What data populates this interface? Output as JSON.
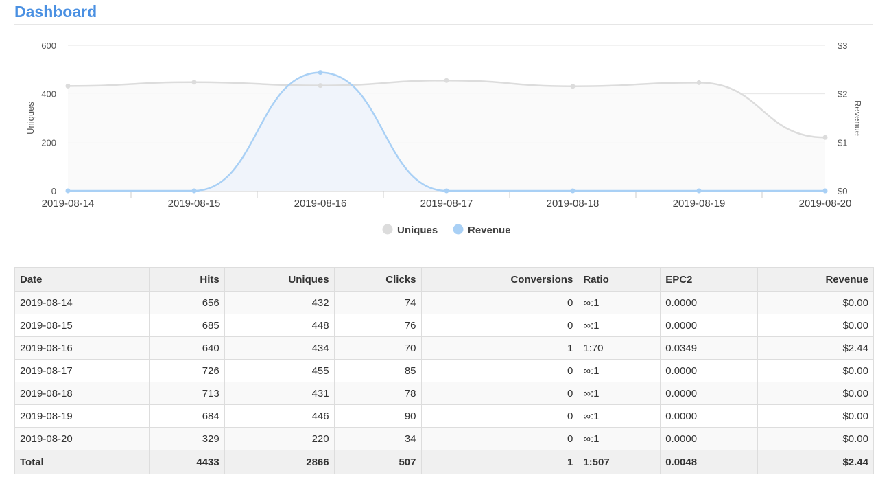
{
  "page": {
    "title": "Dashboard"
  },
  "chart_data": {
    "type": "line",
    "categories": [
      "2019-08-14",
      "2019-08-15",
      "2019-08-16",
      "2019-08-17",
      "2019-08-18",
      "2019-08-19",
      "2019-08-20"
    ],
    "series": [
      {
        "name": "Uniques",
        "axis": "left",
        "values": [
          432,
          448,
          434,
          455,
          431,
          446,
          220
        ],
        "color": "#dcdcdc",
        "fill": "#fafafa"
      },
      {
        "name": "Revenue",
        "axis": "right",
        "values": [
          0,
          0,
          2.44,
          0,
          0,
          0,
          0
        ],
        "color": "#a9d0f5",
        "fill": "#eef3fb"
      }
    ],
    "ylabel_left": "Uniques",
    "ylabel_right": "Revenue",
    "ylim_left": [
      0,
      600
    ],
    "ylim_right": [
      0,
      3
    ],
    "yticks_left": [
      "0",
      "200",
      "400",
      "600"
    ],
    "yticks_right": [
      "$0",
      "$1",
      "$2",
      "$3"
    ],
    "grid": true,
    "legend": "bottom-center"
  },
  "table": {
    "headers": [
      "Date",
      "Hits",
      "Uniques",
      "Clicks",
      "Conversions",
      "Ratio",
      "EPC2",
      "Revenue"
    ],
    "rows": [
      [
        "2019-08-14",
        "656",
        "432",
        "74",
        "0",
        "∞:1",
        "0.0000",
        "$0.00"
      ],
      [
        "2019-08-15",
        "685",
        "448",
        "76",
        "0",
        "∞:1",
        "0.0000",
        "$0.00"
      ],
      [
        "2019-08-16",
        "640",
        "434",
        "70",
        "1",
        "1:70",
        "0.0349",
        "$2.44"
      ],
      [
        "2019-08-17",
        "726",
        "455",
        "85",
        "0",
        "∞:1",
        "0.0000",
        "$0.00"
      ],
      [
        "2019-08-18",
        "713",
        "431",
        "78",
        "0",
        "∞:1",
        "0.0000",
        "$0.00"
      ],
      [
        "2019-08-19",
        "684",
        "446",
        "90",
        "0",
        "∞:1",
        "0.0000",
        "$0.00"
      ],
      [
        "2019-08-20",
        "329",
        "220",
        "34",
        "0",
        "∞:1",
        "0.0000",
        "$0.00"
      ]
    ],
    "total": [
      "Total",
      "4433",
      "2866",
      "507",
      "1",
      "1:507",
      "0.0048",
      "$2.44"
    ]
  }
}
